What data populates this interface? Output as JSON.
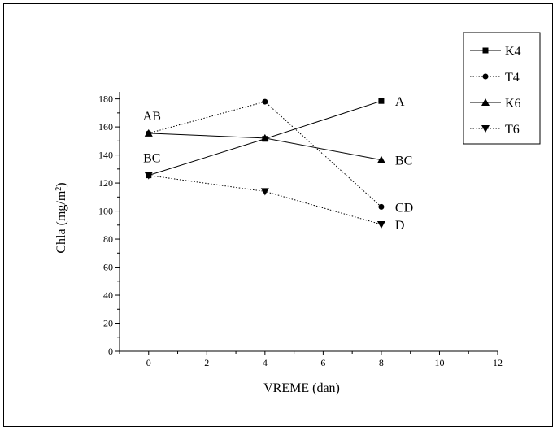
{
  "chart_data": {
    "type": "line",
    "xlabel": "VREME (dan)",
    "ylabel": "Chla (mg/m²)",
    "ylabel_main": "Chla (mg/m",
    "ylabel_sup": "2",
    "ylabel_end": ")",
    "xlim": [
      -1,
      12
    ],
    "ylim": [
      0,
      185
    ],
    "xticks": [
      0,
      2,
      4,
      6,
      8,
      10,
      12
    ],
    "yticks": [
      0,
      20,
      40,
      60,
      80,
      100,
      120,
      140,
      160,
      180
    ],
    "legend_position": "top-right",
    "series": [
      {
        "name": "K4",
        "x": [
          0,
          4,
          8
        ],
        "y": [
          125.5,
          151.5,
          178.5
        ],
        "marker": "square",
        "line": "solid"
      },
      {
        "name": "T4",
        "x": [
          0,
          4,
          8
        ],
        "y": [
          155.5,
          178,
          103
        ],
        "marker": "circle",
        "line": "dotted"
      },
      {
        "name": "K6",
        "x": [
          0,
          4,
          8
        ],
        "y": [
          155.5,
          152,
          136.5
        ],
        "marker": "triangle-up",
        "line": "solid"
      },
      {
        "name": "T6",
        "x": [
          0,
          4,
          8
        ],
        "y": [
          125.5,
          114,
          90.5
        ],
        "marker": "triangle-down",
        "line": "dotted"
      }
    ],
    "annotations": [
      {
        "text": "AB",
        "x": 0,
        "y": 155.5,
        "anchor": "above"
      },
      {
        "text": "BC",
        "x": 0,
        "y": 125.5,
        "anchor": "above"
      },
      {
        "text": "A",
        "x": 8,
        "y": 178.5,
        "anchor": "right"
      },
      {
        "text": "BC",
        "x": 8,
        "y": 136.5,
        "anchor": "right"
      },
      {
        "text": "CD",
        "x": 8,
        "y": 103,
        "anchor": "right"
      },
      {
        "text": "D",
        "x": 8,
        "y": 90.5,
        "anchor": "right"
      }
    ]
  }
}
